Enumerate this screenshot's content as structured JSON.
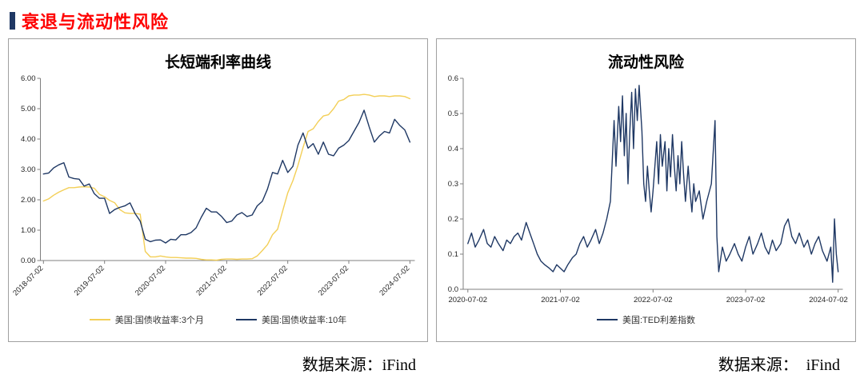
{
  "header": {
    "title": "衰退与流动性风险"
  },
  "footer": {
    "left_source": "数据来源：iFind",
    "right_source": "数据来源：  iFind"
  },
  "colors": {
    "title_red": "#FF0000",
    "accent_bar_navy": "#1F3864",
    "series_yellow": "#F3CF57",
    "series_navy": "#1F3864",
    "axis_gray": "#808080"
  },
  "chart_data": [
    {
      "type": "line",
      "title": "长短端利率曲线",
      "xlim": [
        2018.45,
        2024.58
      ],
      "ylim": [
        0,
        6
      ],
      "yticks": [
        0,
        1,
        2,
        3,
        4,
        5,
        6
      ],
      "ytick_labels": [
        "0.00",
        "1.00",
        "2.00",
        "3.00",
        "4.00",
        "5.00",
        "6.00"
      ],
      "xticks": [
        2018.5,
        2019.5,
        2020.5,
        2021.5,
        2022.5,
        2023.5,
        2024.5
      ],
      "xtick_labels": [
        "2018-07-02",
        "2019-07-02",
        "2020-07-02",
        "2021-07-02",
        "2022-07-02",
        "2023-07-02",
        "2024-07-02"
      ],
      "xtick_rotate": true,
      "grid": false,
      "legend_position": "bottom",
      "series": [
        {
          "name": "美国:国债收益率:3个月",
          "color": "#F3CF57",
          "x0": 2018.5,
          "dx": 0.083333,
          "values": [
            1.96,
            2.03,
            2.15,
            2.25,
            2.33,
            2.4,
            2.4,
            2.42,
            2.43,
            2.42,
            2.38,
            2.18,
            2.1,
            1.98,
            1.9,
            1.68,
            1.57,
            1.55,
            1.55,
            1.53,
            0.3,
            0.12,
            0.12,
            0.15,
            0.12,
            0.1,
            0.1,
            0.09,
            0.08,
            0.08,
            0.07,
            0.04,
            0.02,
            0.02,
            0.01,
            0.04,
            0.05,
            0.05,
            0.04,
            0.05,
            0.05,
            0.06,
            0.15,
            0.33,
            0.52,
            0.85,
            1.03,
            1.63,
            2.23,
            2.63,
            3.13,
            3.72,
            4.25,
            4.34,
            4.58,
            4.76,
            4.8,
            5.0,
            5.25,
            5.3,
            5.42,
            5.45,
            5.45,
            5.47,
            5.45,
            5.4,
            5.42,
            5.42,
            5.4,
            5.42,
            5.42,
            5.4,
            5.33
          ]
        },
        {
          "name": "美国:国债收益率:10年",
          "color": "#1F3864",
          "x0": 2018.5,
          "dx": 0.083333,
          "values": [
            2.85,
            2.88,
            3.05,
            3.15,
            3.22,
            2.75,
            2.7,
            2.68,
            2.45,
            2.52,
            2.2,
            2.05,
            2.05,
            1.55,
            1.68,
            1.75,
            1.8,
            1.9,
            1.55,
            1.3,
            0.7,
            0.62,
            0.67,
            0.68,
            0.58,
            0.7,
            0.68,
            0.85,
            0.85,
            0.92,
            1.08,
            1.42,
            1.72,
            1.6,
            1.6,
            1.45,
            1.25,
            1.3,
            1.5,
            1.58,
            1.45,
            1.5,
            1.8,
            1.95,
            2.35,
            2.9,
            2.85,
            3.3,
            2.9,
            3.1,
            3.8,
            4.2,
            3.7,
            3.85,
            3.5,
            3.9,
            3.5,
            3.45,
            3.7,
            3.8,
            3.95,
            4.25,
            4.55,
            4.95,
            4.4,
            3.9,
            4.1,
            4.25,
            4.2,
            4.65,
            4.45,
            4.3,
            3.9
          ]
        }
      ]
    },
    {
      "type": "line",
      "title": "流动性风险",
      "xlim": [
        2020.45,
        2024.55
      ],
      "ylim": [
        0,
        0.6
      ],
      "yticks": [
        0,
        0.1,
        0.2,
        0.3,
        0.4,
        0.5,
        0.6
      ],
      "ytick_labels": [
        "0.0",
        "0.1",
        "0.2",
        "0.3",
        "0.4",
        "0.5",
        "0.6"
      ],
      "xticks": [
        2020.5,
        2021.5,
        2022.5,
        2023.5,
        2024.5
      ],
      "xtick_labels": [
        "2020-07-02",
        "2021-07-02",
        "2022-07-02",
        "2023-07-02",
        "2024-07-02"
      ],
      "xtick_rotate": false,
      "grid": false,
      "legend_position": "bottom",
      "series": [
        {
          "name": "美国:TED利差指数",
          "color": "#1F3864",
          "points": [
            [
              2020.5,
              0.13
            ],
            [
              2020.54,
              0.16
            ],
            [
              2020.58,
              0.12
            ],
            [
              2020.62,
              0.14
            ],
            [
              2020.67,
              0.17
            ],
            [
              2020.71,
              0.13
            ],
            [
              2020.75,
              0.12
            ],
            [
              2020.79,
              0.15
            ],
            [
              2020.83,
              0.13
            ],
            [
              2020.88,
              0.11
            ],
            [
              2020.92,
              0.14
            ],
            [
              2020.96,
              0.13
            ],
            [
              2021.0,
              0.15
            ],
            [
              2021.04,
              0.16
            ],
            [
              2021.08,
              0.14
            ],
            [
              2021.13,
              0.19
            ],
            [
              2021.17,
              0.16
            ],
            [
              2021.21,
              0.13
            ],
            [
              2021.25,
              0.1
            ],
            [
              2021.29,
              0.08
            ],
            [
              2021.33,
              0.07
            ],
            [
              2021.38,
              0.06
            ],
            [
              2021.42,
              0.05
            ],
            [
              2021.46,
              0.07
            ],
            [
              2021.5,
              0.06
            ],
            [
              2021.54,
              0.05
            ],
            [
              2021.58,
              0.07
            ],
            [
              2021.63,
              0.09
            ],
            [
              2021.67,
              0.1
            ],
            [
              2021.71,
              0.13
            ],
            [
              2021.75,
              0.15
            ],
            [
              2021.79,
              0.12
            ],
            [
              2021.83,
              0.14
            ],
            [
              2021.88,
              0.17
            ],
            [
              2021.92,
              0.13
            ],
            [
              2021.96,
              0.16
            ],
            [
              2022.0,
              0.2
            ],
            [
              2022.04,
              0.25
            ],
            [
              2022.08,
              0.48
            ],
            [
              2022.1,
              0.35
            ],
            [
              2022.13,
              0.52
            ],
            [
              2022.15,
              0.42
            ],
            [
              2022.17,
              0.55
            ],
            [
              2022.19,
              0.38
            ],
            [
              2022.21,
              0.5
            ],
            [
              2022.23,
              0.3
            ],
            [
              2022.25,
              0.45
            ],
            [
              2022.27,
              0.56
            ],
            [
              2022.29,
              0.4
            ],
            [
              2022.31,
              0.57
            ],
            [
              2022.33,
              0.48
            ],
            [
              2022.35,
              0.58
            ],
            [
              2022.38,
              0.45
            ],
            [
              2022.4,
              0.3
            ],
            [
              2022.42,
              0.25
            ],
            [
              2022.44,
              0.35
            ],
            [
              2022.46,
              0.28
            ],
            [
              2022.48,
              0.22
            ],
            [
              2022.5,
              0.28
            ],
            [
              2022.52,
              0.35
            ],
            [
              2022.54,
              0.42
            ],
            [
              2022.56,
              0.3
            ],
            [
              2022.58,
              0.44
            ],
            [
              2022.6,
              0.35
            ],
            [
              2022.63,
              0.42
            ],
            [
              2022.65,
              0.28
            ],
            [
              2022.67,
              0.4
            ],
            [
              2022.69,
              0.32
            ],
            [
              2022.71,
              0.44
            ],
            [
              2022.73,
              0.35
            ],
            [
              2022.75,
              0.28
            ],
            [
              2022.77,
              0.38
            ],
            [
              2022.79,
              0.3
            ],
            [
              2022.81,
              0.42
            ],
            [
              2022.83,
              0.33
            ],
            [
              2022.85,
              0.25
            ],
            [
              2022.88,
              0.35
            ],
            [
              2022.9,
              0.28
            ],
            [
              2022.92,
              0.22
            ],
            [
              2022.94,
              0.3
            ],
            [
              2022.96,
              0.25
            ],
            [
              2023.0,
              0.28
            ],
            [
              2023.04,
              0.2
            ],
            [
              2023.08,
              0.25
            ],
            [
              2023.13,
              0.3
            ],
            [
              2023.17,
              0.48
            ],
            [
              2023.19,
              0.15
            ],
            [
              2023.21,
              0.05
            ],
            [
              2023.25,
              0.12
            ],
            [
              2023.29,
              0.08
            ],
            [
              2023.33,
              0.1
            ],
            [
              2023.38,
              0.13
            ],
            [
              2023.42,
              0.1
            ],
            [
              2023.46,
              0.08
            ],
            [
              2023.5,
              0.12
            ],
            [
              2023.54,
              0.15
            ],
            [
              2023.58,
              0.1
            ],
            [
              2023.63,
              0.13
            ],
            [
              2023.67,
              0.16
            ],
            [
              2023.71,
              0.12
            ],
            [
              2023.75,
              0.1
            ],
            [
              2023.79,
              0.14
            ],
            [
              2023.83,
              0.11
            ],
            [
              2023.88,
              0.13
            ],
            [
              2023.92,
              0.18
            ],
            [
              2023.96,
              0.2
            ],
            [
              2024.0,
              0.15
            ],
            [
              2024.04,
              0.13
            ],
            [
              2024.08,
              0.16
            ],
            [
              2024.13,
              0.12
            ],
            [
              2024.17,
              0.14
            ],
            [
              2024.21,
              0.1
            ],
            [
              2024.25,
              0.13
            ],
            [
              2024.29,
              0.15
            ],
            [
              2024.33,
              0.11
            ],
            [
              2024.38,
              0.08
            ],
            [
              2024.42,
              0.12
            ],
            [
              2024.44,
              0.02
            ],
            [
              2024.46,
              0.2
            ],
            [
              2024.48,
              0.1
            ],
            [
              2024.5,
              0.05
            ]
          ]
        }
      ]
    }
  ]
}
